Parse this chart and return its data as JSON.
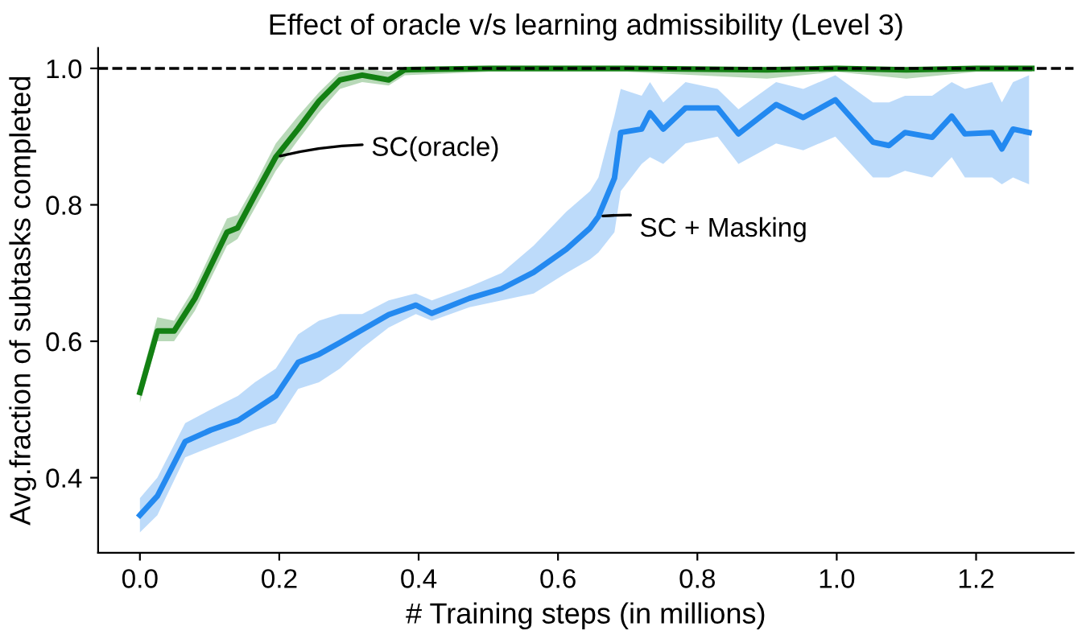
{
  "chart_data": {
    "type": "line",
    "title": "Effect of oracle v/s learning admissibility (Level 3)",
    "xlabel": "# Training steps (in millions)",
    "ylabel": "Avg.fraction of subtasks completed",
    "xlim": [
      -0.06,
      1.34
    ],
    "ylim": [
      0.29,
      1.03
    ],
    "xticks": [
      {
        "value": 0,
        "label": "0.0"
      },
      0.2,
      0.4,
      0.6,
      0.8,
      {
        "value": 1,
        "label": "1.0"
      },
      1.2
    ],
    "yticks": [
      0.4,
      0.6,
      0.8,
      {
        "value": 1,
        "label": "1.0"
      }
    ],
    "grid": false,
    "legend": false,
    "line_style": "solid",
    "marker": "none",
    "series": [
      {
        "name": "SC(oracle)",
        "color": "#138013",
        "x": [
          0,
          0.025,
          0.049,
          0.079,
          0.125,
          0.14,
          0.165,
          0.195,
          0.227,
          0.257,
          0.287,
          0.319,
          0.357,
          0.38,
          0.5,
          0.7,
          0.9,
          1.0,
          1.1,
          1.2,
          1.28
        ],
        "values": [
          0.525,
          0.615,
          0.615,
          0.663,
          0.76,
          0.766,
          0.814,
          0.87,
          0.911,
          0.952,
          0.983,
          0.99,
          0.983,
          0.998,
          1.0,
          1.0,
          0.998,
          1.0,
          0.998,
          1.0,
          1.0
        ],
        "lower": [
          0.51,
          0.6,
          0.6,
          0.645,
          0.74,
          0.75,
          0.795,
          0.85,
          0.895,
          0.935,
          0.97,
          0.98,
          0.975,
          0.99,
          0.995,
          0.995,
          0.985,
          0.995,
          0.985,
          0.995,
          0.995
        ],
        "upper": [
          0.54,
          0.635,
          0.63,
          0.68,
          0.78,
          0.785,
          0.83,
          0.89,
          0.93,
          0.965,
          0.995,
          1.0,
          0.995,
          1.0,
          1.0,
          1.0,
          1.0,
          1.0,
          1.0,
          1.0,
          1.0
        ]
      },
      {
        "name": "SC + Masking",
        "color": "#2389f0",
        "x": [
          0,
          0.025,
          0.065,
          0.102,
          0.141,
          0.165,
          0.195,
          0.227,
          0.257,
          0.287,
          0.319,
          0.357,
          0.396,
          0.419,
          0.473,
          0.519,
          0.565,
          0.612,
          0.646,
          0.658,
          0.681,
          0.69,
          0.72,
          0.732,
          0.751,
          0.783,
          0.829,
          0.859,
          0.913,
          0.952,
          0.998,
          1.052,
          1.075,
          1.098,
          1.137,
          1.165,
          1.184,
          1.223,
          1.237,
          1.253,
          1.276
        ],
        "values": [
          0.345,
          0.373,
          0.453,
          0.47,
          0.484,
          0.5,
          0.52,
          0.569,
          0.581,
          0.598,
          0.617,
          0.639,
          0.653,
          0.641,
          0.663,
          0.677,
          0.701,
          0.735,
          0.766,
          0.783,
          0.839,
          0.906,
          0.911,
          0.935,
          0.911,
          0.942,
          0.942,
          0.904,
          0.947,
          0.928,
          0.954,
          0.892,
          0.887,
          0.906,
          0.899,
          0.93,
          0.904,
          0.906,
          0.882,
          0.911,
          0.906
        ],
        "lower": [
          0.32,
          0.345,
          0.43,
          0.445,
          0.46,
          0.47,
          0.48,
          0.53,
          0.54,
          0.56,
          0.59,
          0.62,
          0.64,
          0.63,
          0.65,
          0.66,
          0.67,
          0.7,
          0.72,
          0.73,
          0.76,
          0.82,
          0.86,
          0.87,
          0.86,
          0.89,
          0.9,
          0.86,
          0.89,
          0.88,
          0.9,
          0.84,
          0.84,
          0.85,
          0.84,
          0.87,
          0.84,
          0.84,
          0.83,
          0.84,
          0.83
        ],
        "upper": [
          0.37,
          0.4,
          0.48,
          0.5,
          0.52,
          0.54,
          0.56,
          0.61,
          0.63,
          0.64,
          0.64,
          0.66,
          0.67,
          0.66,
          0.68,
          0.7,
          0.74,
          0.79,
          0.82,
          0.84,
          0.93,
          0.97,
          0.96,
          0.98,
          0.95,
          0.98,
          0.97,
          0.94,
          0.98,
          0.97,
          0.99,
          0.95,
          0.95,
          0.96,
          0.96,
          0.98,
          0.97,
          0.98,
          0.95,
          0.98,
          0.99
        ]
      }
    ],
    "ref_lines": [
      {
        "axis": "y",
        "value": 1,
        "color": "#000000",
        "line_style": "dashed"
      }
    ]
  }
}
